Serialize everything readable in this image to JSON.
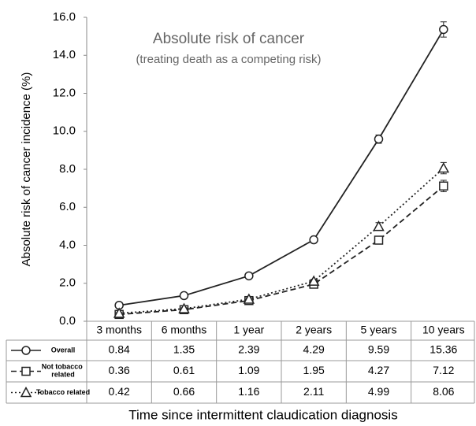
{
  "chart_data": {
    "type": "line",
    "annotations": [
      "Absolute risk of cancer",
      "(treating death as a competing risk)"
    ],
    "ylabel": "Absolute risk of cancer incidence (%)",
    "xlabel": "Time since intermittent claudication diagnosis",
    "categories": [
      "3 months",
      "6 months",
      "1 year",
      "2 years",
      "5 years",
      "10 years"
    ],
    "ylim": [
      0,
      16
    ],
    "yticks": [
      {
        "value": 0,
        "label": "0.0"
      },
      {
        "value": 2,
        "label": "2.0"
      },
      {
        "value": 4,
        "label": "4.0"
      },
      {
        "value": 6,
        "label": "6.0"
      },
      {
        "value": 8,
        "label": "8.0"
      },
      {
        "value": 10,
        "label": "10.0"
      },
      {
        "value": 12,
        "label": "12.0"
      },
      {
        "value": 14,
        "label": "14.0"
      },
      {
        "value": 16,
        "label": "16.0"
      }
    ],
    "grid": false,
    "series": [
      {
        "name": "Overall",
        "color": "#222222",
        "marker": "circle",
        "dash": "solid",
        "values": [
          0.84,
          1.35,
          2.39,
          4.29,
          9.59,
          15.36
        ],
        "errors": [
          0.05,
          0.06,
          0.08,
          0.12,
          0.22,
          0.4
        ]
      },
      {
        "name": "Not tobacco related",
        "color": "#222222",
        "marker": "square",
        "dash": "dashed",
        "values": [
          0.36,
          0.61,
          1.09,
          1.95,
          4.27,
          7.12
        ],
        "errors": [
          0.04,
          0.05,
          0.07,
          0.1,
          0.18,
          0.3
        ]
      },
      {
        "name": "Tobacco related",
        "color": "#222222",
        "marker": "triangle",
        "dash": "dotted",
        "values": [
          0.42,
          0.66,
          1.16,
          2.11,
          4.99,
          8.06
        ],
        "errors": [
          0.04,
          0.05,
          0.07,
          0.1,
          0.2,
          0.3
        ]
      }
    ]
  }
}
